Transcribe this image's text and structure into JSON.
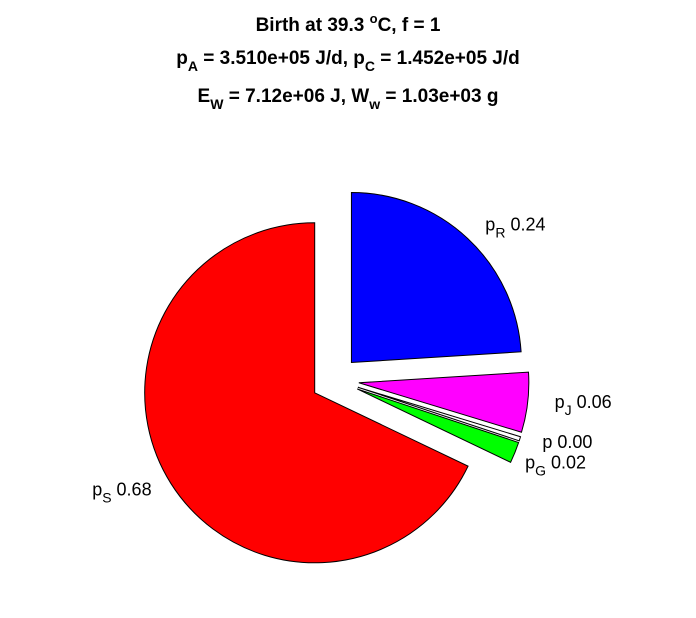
{
  "title": {
    "line1": {
      "prefix": "Birth at 39.3 ",
      "sup": "o",
      "suffix": "C, f = 1"
    },
    "line2": {
      "a_base": "p",
      "a_sub": "A",
      "a_val": " = 3.510e+05 J/d, ",
      "c_base": "p",
      "c_sub": "C",
      "c_val": " = 1.452e+05 J/d"
    },
    "line3": {
      "e_base": "E",
      "e_sub": "W",
      "e_val": " = 7.12e+06 J, ",
      "w_base": "W",
      "w_sub": "w",
      "w_val": " = 1.03e+03 g"
    }
  },
  "chart_data": {
    "type": "pie",
    "exploded": true,
    "start_angle_deg": 90,
    "direction": "clockwise",
    "slices": [
      {
        "base": "p",
        "sub": "R",
        "value_label": "0.24",
        "value": 0.24,
        "color": "#0000ff"
      },
      {
        "base": "p",
        "sub": "J",
        "value_label": "0.06",
        "value": 0.057,
        "color": "#ff00ff"
      },
      {
        "base": "p",
        "sub": "",
        "value_label": "0.00",
        "value": 0.004,
        "color": "#ffffff"
      },
      {
        "base": "p",
        "sub": "G",
        "value_label": "0.02",
        "value": 0.02,
        "color": "#00ff00"
      },
      {
        "base": "p",
        "sub": "S",
        "value_label": "0.68",
        "value": 0.679,
        "color": "#ff0000"
      }
    ]
  }
}
